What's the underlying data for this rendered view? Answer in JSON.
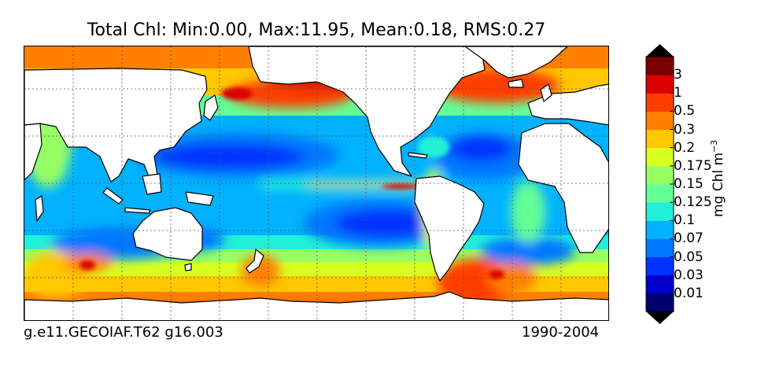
{
  "title": "Total Chl: Min:0.00, Max:11.95, Mean:0.18, RMS:0.27",
  "footnote_left": "g.e11.GECOIAF.T62 g16.003",
  "footnote_right": "1990-2004",
  "colorbar": {
    "label": "mg Chl m",
    "label_exponent": "−3",
    "ticks": [
      "0.01",
      "0.03",
      "0.05",
      "0.07",
      "0.1",
      "0.125",
      "0.15",
      "0.175",
      "0.2",
      "0.3",
      "0.5",
      "1",
      "3"
    ],
    "colors": [
      "#00006f",
      "#0000cc",
      "#0033ff",
      "#0077ff",
      "#00b2ff",
      "#20f0d8",
      "#64ff96",
      "#96ff64",
      "#d8ff20",
      "#ffc800",
      "#ff8000",
      "#ff3c00",
      "#dd0000",
      "#7a0000"
    ]
  },
  "map": {
    "land_color": "#ffffff",
    "coast_color": "#000000",
    "grid": "dotted"
  }
}
